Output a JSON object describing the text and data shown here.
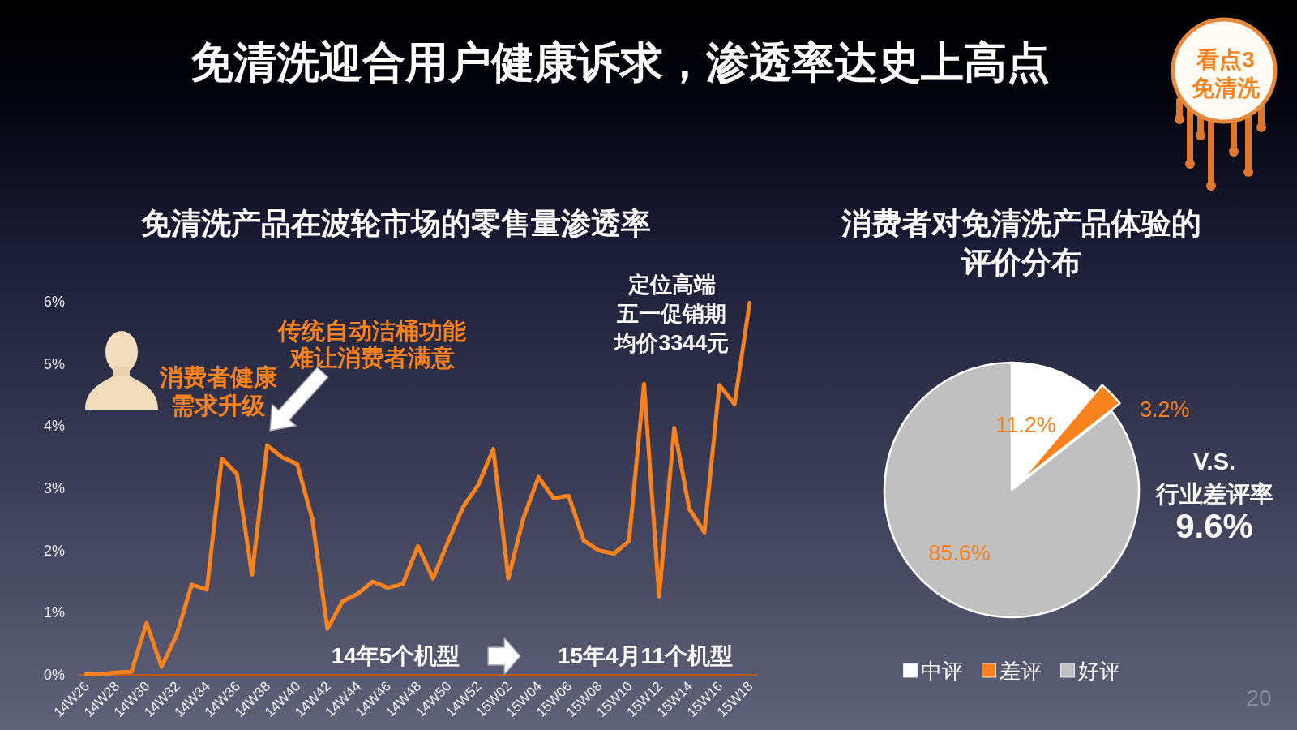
{
  "chart_data": [
    {
      "type": "other",
      "title": "免清洗迎合用户健康诉求，渗透率达史上高点",
      "annotations": [
        "看点3免清洗",
        "20"
      ]
    },
    {
      "type": "line",
      "title": "免清洗产品在波轮市场的零售量渗透率",
      "categories": [
        "14W26",
        null,
        "14W28",
        null,
        "14W30",
        null,
        "14W32",
        null,
        "14W34",
        null,
        "14W36",
        null,
        "14W38",
        null,
        "14W40",
        null,
        "14W42",
        null,
        "14W44",
        null,
        "14W46",
        null,
        "14W48",
        null,
        "14W50",
        null,
        "14W52",
        null,
        "15W02",
        null,
        "15W04",
        null,
        "15W06",
        null,
        "15W08",
        null,
        "15W10",
        null,
        "15W12",
        null,
        "15W14",
        null,
        "15W16",
        null,
        "15W18"
      ],
      "series": [
        {
          "color": "#f7821e",
          "values": [
            0.01,
            0.01,
            0.04,
            0.05,
            0.83,
            0.13,
            0.64,
            1.45,
            1.37,
            3.48,
            3.23,
            1.61,
            3.69,
            3.5,
            3.39,
            2.5,
            0.74,
            1.18,
            1.3,
            1.5,
            1.4,
            1.46,
            2.07,
            1.55,
            2.14,
            2.7,
            3.05,
            3.63,
            1.55,
            2.52,
            3.18,
            2.84,
            2.88,
            2.16,
            2,
            1.95,
            2.15,
            4.68,
            1.26,
            3.97,
            2.67,
            2.29,
            4.66,
            4.35,
            5.98
          ]
        }
      ],
      "ylim": [
        0,
        6
      ],
      "yticks": [
        {
          "value": 0,
          "label": "0%"
        },
        {
          "value": 1,
          "label": "1%"
        },
        {
          "value": 2,
          "label": "2%"
        },
        {
          "value": 3,
          "label": "3%"
        },
        {
          "value": 4,
          "label": "4%"
        },
        {
          "value": 5,
          "label": "5%"
        },
        {
          "value": 6,
          "label": "6%"
        }
      ],
      "line_style": "solid",
      "annotations": [
        "消费者健康需求升级",
        "传统自动洁桶功能难让消费者满意",
        {
          "text": "定位高端五一促销期均价3344元",
          "x": "15W18",
          "y": 5.98
        },
        "14年5个机型",
        "15年4月11个机型"
      ]
    },
    {
      "type": "pie",
      "title": "消费者对免清洗产品体验的评价分布",
      "categories": [
        "中评",
        "差评",
        "好评"
      ],
      "values": [
        11.2,
        3.2,
        85.6
      ],
      "colors": [
        "#ffffff",
        "#f7821e",
        "#c0c0c0"
      ],
      "value_labels": [
        "11.2%",
        "3.2%",
        "85.6%"
      ],
      "legend": "bottom",
      "annotations": [
        "V.S.",
        "行业差评率",
        "9.6%"
      ]
    }
  ]
}
